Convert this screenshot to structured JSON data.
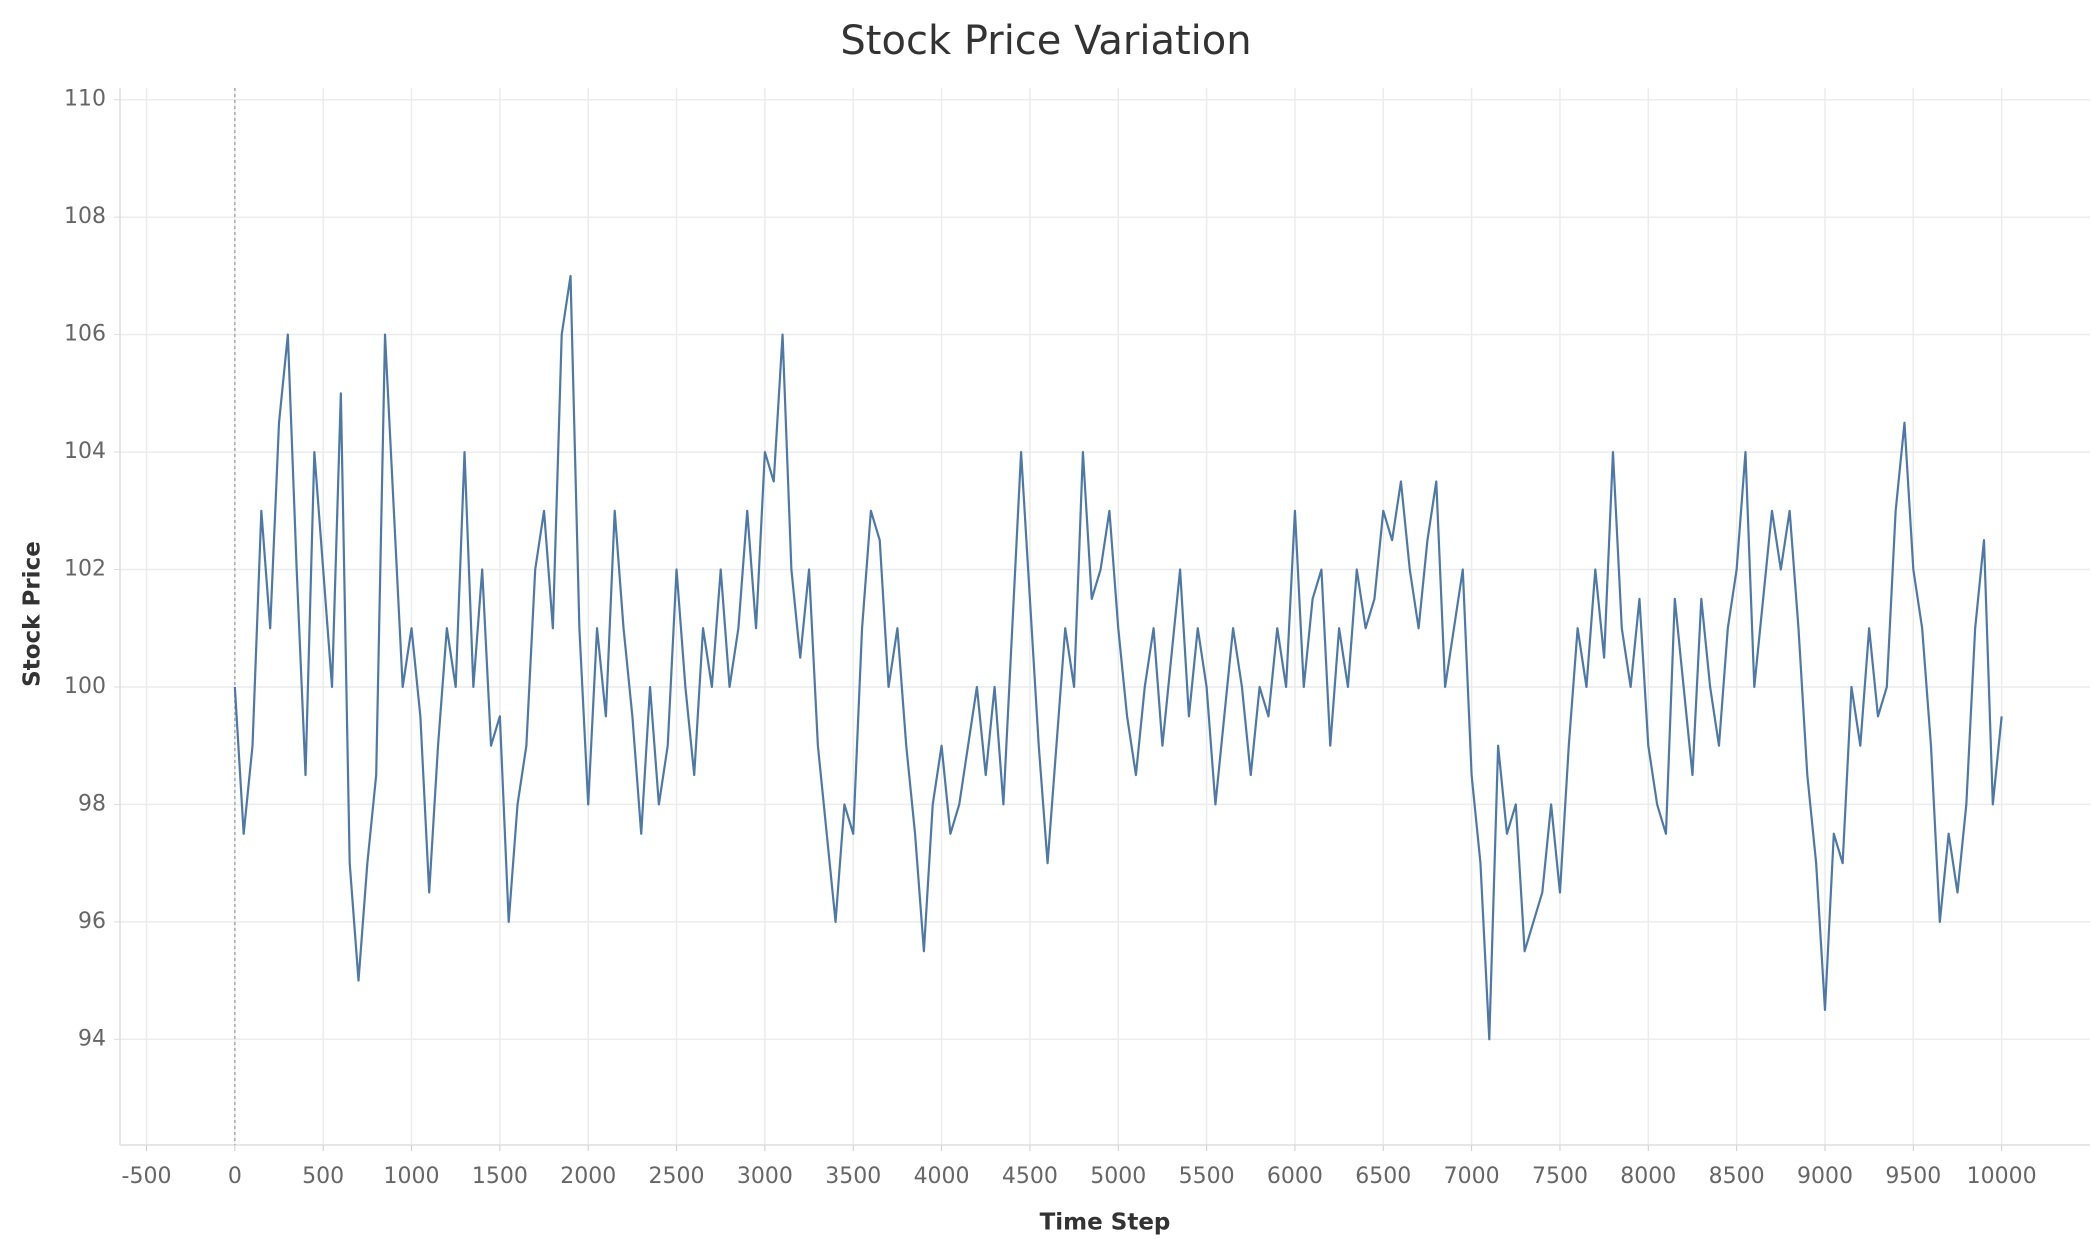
{
  "chart_data": {
    "type": "line",
    "title": "Stock Price Variation",
    "x_label": "Time Step",
    "y_label": "Stock Price",
    "x": [
      0,
      50,
      100,
      150,
      200,
      250,
      300,
      350,
      400,
      450,
      500,
      550,
      600,
      650,
      700,
      750,
      800,
      850,
      900,
      950,
      1000,
      1050,
      1100,
      1150,
      1200,
      1250,
      1300,
      1350,
      1400,
      1450,
      1500,
      1550,
      1600,
      1650,
      1700,
      1750,
      1800,
      1850,
      1900,
      1950,
      2000,
      2050,
      2100,
      2150,
      2200,
      2250,
      2300,
      2350,
      2400,
      2450,
      2500,
      2550,
      2600,
      2650,
      2700,
      2750,
      2800,
      2850,
      2900,
      2950,
      3000,
      3050,
      3100,
      3150,
      3200,
      3250,
      3300,
      3350,
      3400,
      3450,
      3500,
      3550,
      3600,
      3650,
      3700,
      3750,
      3800,
      3850,
      3900,
      3950,
      4000,
      4050,
      4100,
      4150,
      4200,
      4250,
      4300,
      4350,
      4400,
      4450,
      4500,
      4550,
      4600,
      4650,
      4700,
      4750,
      4800,
      4850,
      4900,
      4950,
      5000,
      5050,
      5100,
      5150,
      5200,
      5250,
      5300,
      5350,
      5400,
      5450,
      5500,
      5550,
      5600,
      5650,
      5700,
      5750,
      5800,
      5850,
      5900,
      5950,
      6000,
      6050,
      6100,
      6150,
      6200,
      6250,
      6300,
      6350,
      6400,
      6450,
      6500,
      6550,
      6600,
      6650,
      6700,
      6750,
      6800,
      6850,
      6900,
      6950,
      7000,
      7050,
      7100,
      7150,
      7200,
      7250,
      7300,
      7350,
      7400,
      7450,
      7500,
      7550,
      7600,
      7650,
      7700,
      7750,
      7800,
      7850,
      7900,
      7950,
      8000,
      8050,
      8100,
      8150,
      8200,
      8250,
      8300,
      8350,
      8400,
      8450,
      8500,
      8550,
      8600,
      8650,
      8700,
      8750,
      8800,
      8850,
      8900,
      8950,
      9000,
      9050,
      9100,
      9150,
      9200,
      9250,
      9300,
      9350,
      9400,
      9450,
      9500,
      9550,
      9600,
      9650,
      9700,
      9750,
      9800,
      9850,
      9900,
      9950,
      10000
    ],
    "series": [
      {
        "name": "Stock Price",
        "color": "#4e79a7",
        "values": [
          100,
          97.5,
          99,
          103,
          101,
          104.5,
          106,
          102,
          98.5,
          104,
          102,
          100,
          105,
          97,
          95,
          97,
          98.5,
          106,
          103,
          100,
          101,
          99.5,
          96.5,
          99,
          101,
          100,
          104,
          100,
          102,
          99,
          99.5,
          96,
          98,
          99,
          102,
          103,
          101,
          106,
          107,
          101,
          98,
          101,
          99.5,
          103,
          101,
          99.5,
          97.5,
          100,
          98,
          99,
          102,
          100,
          98.5,
          101,
          100,
          102,
          100,
          101,
          103,
          101,
          104,
          103.5,
          106,
          102,
          100.5,
          102,
          99,
          97.5,
          96,
          98,
          97.5,
          101,
          103,
          102.5,
          100,
          101,
          99,
          97.5,
          95.5,
          98,
          99,
          97.5,
          98,
          99,
          100,
          98.5,
          100,
          98,
          101,
          104,
          101.5,
          99,
          97,
          99,
          101,
          100,
          104,
          101.5,
          102,
          103,
          101,
          99.5,
          98.5,
          100,
          101,
          99,
          100.5,
          102,
          99.5,
          101,
          100,
          98,
          99.5,
          101,
          100,
          98.5,
          100,
          99.5,
          101,
          100,
          103,
          100,
          101.5,
          102,
          99,
          101,
          100,
          102,
          101,
          101.5,
          103,
          102.5,
          103.5,
          102,
          101,
          102.5,
          103.5,
          100,
          101,
          102,
          98.5,
          97,
          94,
          99,
          97.5,
          98,
          95.5,
          96,
          96.5,
          98,
          96.5,
          99,
          101,
          100,
          102,
          100.5,
          104,
          101,
          100,
          101.5,
          99,
          98,
          97.5,
          101.5,
          100,
          98.5,
          101.5,
          100,
          99,
          101,
          102,
          104,
          100,
          101.5,
          103,
          102,
          103,
          101,
          98.5,
          97,
          94.5,
          97.5,
          97,
          100,
          99,
          101,
          99.5,
          100,
          103,
          104.5,
          102,
          101,
          99,
          96,
          97.5,
          96.5,
          98,
          101,
          102.5,
          98,
          99.5
        ]
      }
    ],
    "xlim": [
      -650,
      10500
    ],
    "ylim": [
      92.2,
      110.2
    ],
    "xticks": [
      -500,
      0,
      500,
      1000,
      1500,
      2000,
      2500,
      3000,
      3500,
      4000,
      4500,
      5000,
      5500,
      6000,
      6500,
      7000,
      7500,
      8000,
      8500,
      9000,
      9500,
      10000
    ],
    "yticks": [
      94,
      96,
      98,
      100,
      102,
      104,
      106,
      108,
      110
    ],
    "grid": true
  }
}
